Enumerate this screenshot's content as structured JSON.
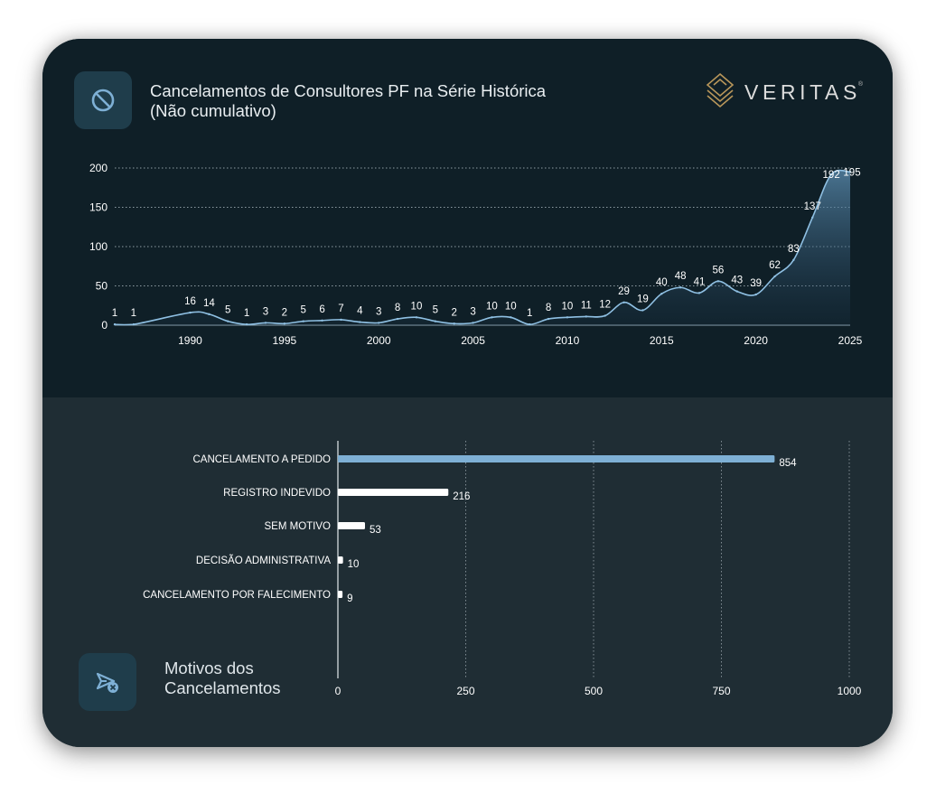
{
  "header": {
    "title_line1": "Cancelamentos de Consultores PF na Série Histórica",
    "title_line2": "(Não cumulativo)",
    "icon": "ban-icon"
  },
  "logo": {
    "text": "VERITAS",
    "mark": "®"
  },
  "footer": {
    "title_line1": "Motivos dos",
    "title_line2": "Cancelamentos",
    "icon": "send-cancel-icon"
  },
  "colors": {
    "accent": "#7eb0d5",
    "card_top": "#0f1f27",
    "card_bottom": "#1f2d34",
    "logo_gold": "#b8965a"
  },
  "chart_data": [
    {
      "type": "area",
      "x": [
        1986,
        1987,
        1988,
        1989,
        1990,
        1991,
        1992,
        1993,
        1994,
        1995,
        1996,
        1997,
        1998,
        1999,
        2000,
        2001,
        2002,
        2003,
        2004,
        2005,
        2006,
        2007,
        2008,
        2009,
        2010,
        2011,
        2012,
        2013,
        2014,
        2015,
        2016,
        2017,
        2018,
        2019,
        2020,
        2021,
        2022,
        2023,
        2024,
        2025
      ],
      "values": [
        1,
        1,
        null,
        null,
        16,
        14,
        5,
        1,
        3,
        2,
        5,
        6,
        7,
        4,
        3,
        8,
        10,
        5,
        2,
        3,
        10,
        10,
        1,
        8,
        10,
        11,
        12,
        29,
        19,
        40,
        48,
        41,
        56,
        43,
        39,
        62,
        83,
        137,
        192,
        195
      ],
      "xticks": [
        1990,
        1995,
        2000,
        2005,
        2010,
        2015,
        2020,
        2025
      ],
      "yticks": [
        0,
        50,
        100,
        150,
        200
      ],
      "ylim": [
        0,
        200
      ],
      "grid": true
    },
    {
      "type": "bar",
      "orientation": "horizontal",
      "categories": [
        "CANCELAMENTO A PEDIDO",
        "REGISTRO INDEVIDO",
        "SEM MOTIVO",
        "DECISÃO ADMINISTRATIVA",
        "CANCELAMENTO POR FALECIMENTO"
      ],
      "values": [
        854,
        216,
        53,
        10,
        9
      ],
      "xticks": [
        0,
        250,
        500,
        750,
        1000
      ],
      "xlim": [
        0,
        1000
      ],
      "grid": true,
      "highlight_index": 0
    }
  ]
}
